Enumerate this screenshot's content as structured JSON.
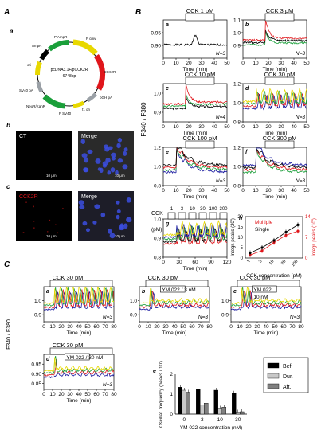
{
  "panels": {
    "A": "A",
    "B": "B",
    "C": "C"
  },
  "plasmid": {
    "sub": "a",
    "name_line1": "pcDNA3.1+/pCCK2R",
    "name_line2": "6748bp",
    "features": [
      "P AmpR",
      "P cmv",
      "CCK2R",
      "bGH pA",
      "f1 ori",
      "P SV40",
      "NeoR/KanR",
      "SV40 pA",
      "ori",
      "AmpR"
    ]
  },
  "micro": {
    "b_label": "b",
    "c_label": "c",
    "ct": "CT",
    "cck2r": "CCK2R",
    "merge": "Merge",
    "scale": "10 μm"
  },
  "axes": {
    "ylabel_B": "F340 / F380",
    "ylabel_C": "F340 / F380",
    "xlabel": "Time (min)"
  },
  "B_traces": [
    {
      "key": "a",
      "title": "CCK 1 pM",
      "n": "N=3",
      "ymin": 0.85,
      "ymax": 1.0,
      "yticks": [
        "0.95",
        "0.90"
      ],
      "xticks": [
        "0",
        "10",
        "20",
        "30",
        "40",
        "50"
      ],
      "seed": 1,
      "mode": "flat",
      "colors": [
        "#000000"
      ]
    },
    {
      "key": "b",
      "title": "CCK 3 pM",
      "n": "N=3",
      "ymin": 0.8,
      "ymax": 1.1,
      "yticks": [
        "1.1",
        "1.0",
        "0.9"
      ],
      "xticks": [
        "0",
        "10",
        "20",
        "30",
        "40",
        "50"
      ],
      "seed": 2,
      "mode": "spike",
      "colors": [
        "#1a9f3a",
        "#000000",
        "#e0161b"
      ]
    },
    {
      "key": "c",
      "title": "CCK 10 pM",
      "n": "N=4",
      "ymin": 0.85,
      "ymax": 1.05,
      "yticks": [
        "1.0",
        "0.9"
      ],
      "xticks": [
        "0",
        "10",
        "20",
        "30",
        "40",
        "50"
      ],
      "seed": 3,
      "mode": "spike",
      "colors": [
        "#000000",
        "#1a9f3a",
        "#e0161b"
      ]
    },
    {
      "key": "d",
      "title": "CCK 30 pM",
      "n": "N=3",
      "ymin": 0.8,
      "ymax": 1.2,
      "yticks": [
        "1.2",
        "1.0",
        "0.8"
      ],
      "xticks": [
        "0",
        "10",
        "20",
        "30",
        "40",
        "50"
      ],
      "seed": 4,
      "mode": "osc",
      "colors": [
        "#1a1aa0",
        "#e0161b",
        "#1a9f3a",
        "#e8d800"
      ]
    },
    {
      "key": "e",
      "title": "CCK 100 pM",
      "n": "N=3",
      "ymin": 0.8,
      "ymax": 1.2,
      "yticks": [
        "1.2",
        "1.0",
        "0.8"
      ],
      "xticks": [
        "0",
        "10",
        "20",
        "30",
        "40",
        "50"
      ],
      "seed": 5,
      "mode": "decay",
      "colors": [
        "#1a1aa0",
        "#1a9f3a",
        "#e0161b",
        "#000000"
      ]
    },
    {
      "key": "f",
      "title": "CCK 300 pM",
      "n": "N=3",
      "ymin": 0.8,
      "ymax": 1.2,
      "yticks": [
        "1.2",
        "1.0",
        "0.8"
      ],
      "xticks": [
        "0",
        "10",
        "20",
        "30",
        "40",
        "50"
      ],
      "seed": 6,
      "mode": "decay",
      "colors": [
        "#1a9f3a",
        "#e0161b",
        "#000000",
        "#1a1aa0"
      ]
    }
  ],
  "B_g": {
    "key": "g",
    "prefix": "CCK",
    "unit": "(pM)",
    "concs": [
      "1",
      "3",
      "10",
      "30",
      "100",
      "300"
    ],
    "ymin": 0.8,
    "ymax": 1.0,
    "yticks": [
      "1.0",
      "0.9",
      "0.8"
    ],
    "xticks": [
      "0",
      "30",
      "60",
      "90",
      "120"
    ],
    "colors": [
      "#e0161b",
      "#000000",
      "#1a9f3a",
      "#1a1aa0",
      "#e8d800"
    ]
  },
  "B_h": {
    "key": "h",
    "multiple": "Multiple",
    "single": "Single",
    "ylabel_left": "Integr. peaks (20')",
    "ylabel_right": "Integr. peaks (10')",
    "xlabel": "CCK concentration (pM)",
    "xticks": [
      "1",
      "3",
      "10",
      "30",
      "100"
    ],
    "yticks_left": [
      "0",
      "5",
      "10",
      "15",
      "20"
    ],
    "yticks_right": [
      "0",
      "7",
      "14"
    ]
  },
  "C_traces": [
    {
      "key": "a",
      "title": "CCK 30 pM",
      "n": "N=3",
      "ymin": 0.85,
      "ymax": 1.1,
      "yticks": [
        "1.0",
        "0.9"
      ],
      "xticks": [
        "0",
        "10",
        "20",
        "30",
        "40",
        "50",
        "60",
        "70",
        "80"
      ],
      "drug": "",
      "seed": 7,
      "cut": 99
    },
    {
      "key": "b",
      "title": "CCK 30 pM",
      "n": "N=3",
      "ymin": 0.85,
      "ymax": 1.1,
      "yticks": [
        "1.0",
        "0.9"
      ],
      "xticks": [
        "0",
        "10",
        "20",
        "30",
        "40",
        "50",
        "60",
        "70",
        "80"
      ],
      "drug": "YM 022 / 3 nM",
      "seed": 8,
      "cut": 22
    },
    {
      "key": "c",
      "title": "CCK 30 pM",
      "n": "N=3",
      "ymin": 0.85,
      "ymax": 1.1,
      "yticks": [
        "1.0",
        "0.9"
      ],
      "xticks": [
        "0",
        "10",
        "20",
        "30",
        "40",
        "50",
        "60",
        "70",
        "80"
      ],
      "drug": "YM 022",
      "drug2": "10 nM",
      "seed": 9,
      "cut": 30
    },
    {
      "key": "d",
      "title": "CCK 30 pM",
      "n": "N=3",
      "ymin": 0.82,
      "ymax": 1.0,
      "yticks": [
        "0.95",
        "0.90",
        "0.85"
      ],
      "xticks": [
        "0",
        "10",
        "20",
        "30",
        "40",
        "50",
        "60",
        "70",
        "80"
      ],
      "drug": "YM 022 / 30 nM",
      "seed": 10,
      "cut": 18
    }
  ],
  "chart_data": {
    "type": "bar",
    "panel": "e",
    "categories": [
      "0",
      "3",
      "10",
      "30"
    ],
    "series": [
      {
        "name": "Bef.",
        "values": [
          1.35,
          1.25,
          1.2,
          1.05
        ],
        "color": "#000000"
      },
      {
        "name": "Dur.",
        "values": [
          1.2,
          0.45,
          0.3,
          0.1
        ],
        "color": "#c8c8c8"
      },
      {
        "name": "Aft.",
        "values": [
          1.1,
          0.55,
          0.35,
          0.12
        ],
        "color": "#808080"
      }
    ],
    "ylabel": "Oscillat. frequency (peaks / 10')",
    "xlabel": "YM 022 concentration (nM)",
    "ylim": [
      0,
      2
    ],
    "yticks": [
      "2",
      "1",
      "0"
    ],
    "grid": false,
    "legend_position": "top-right"
  }
}
